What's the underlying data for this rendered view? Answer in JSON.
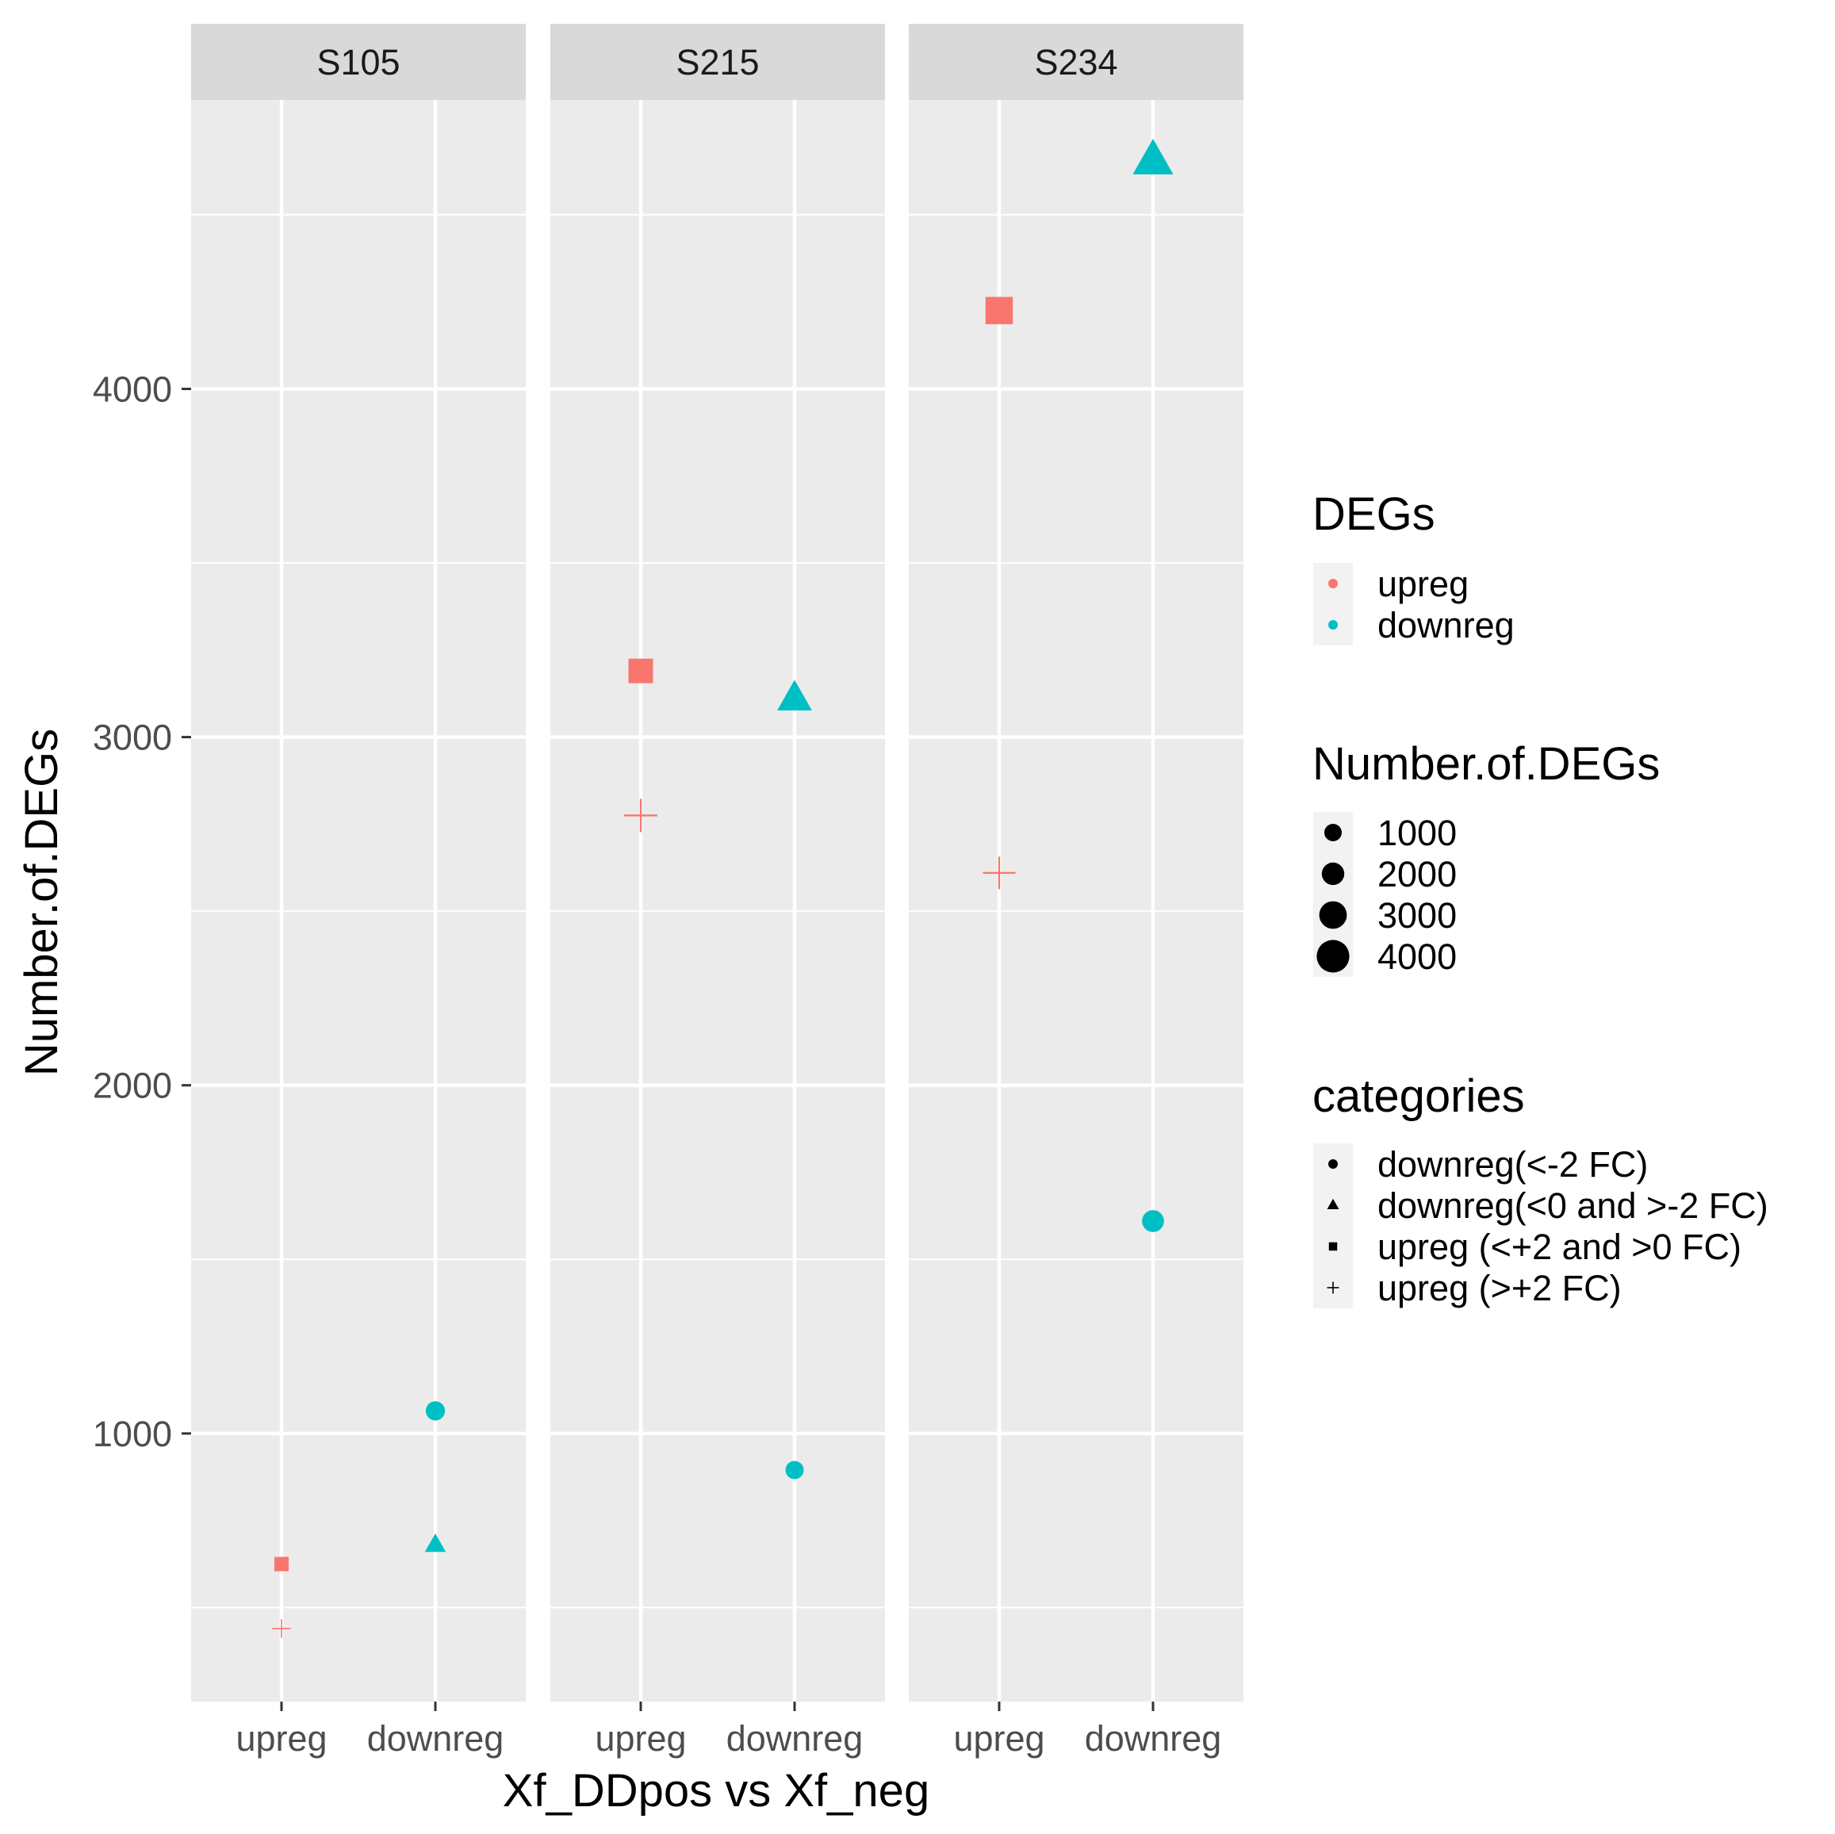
{
  "chart_data": {
    "type": "scatter",
    "facet_variable": "sample",
    "facets": [
      "S105",
      "S215",
      "S234"
    ],
    "categories": [
      "upreg",
      "downreg"
    ],
    "xlabel": "Xf_DDpos vs Xf_neg",
    "ylabel": "Number.of.DEGs",
    "ylim": [
      230,
      4830
    ],
    "yticks": [
      1000,
      2000,
      3000,
      4000
    ],
    "grid": true,
    "colors": {
      "upreg": "#F8766D",
      "downreg": "#00BFC4"
    },
    "points": [
      {
        "facet": "S105",
        "x": "upreg",
        "category": "upreg (>+2 FC)",
        "degs": "upreg",
        "value": 440
      },
      {
        "facet": "S105",
        "x": "upreg",
        "category": "upreg (<+2 and >0 FC)",
        "degs": "upreg",
        "value": 625
      },
      {
        "facet": "S105",
        "x": "downreg",
        "category": "downreg(<0 and >-2 FC)",
        "degs": "downreg",
        "value": 680
      },
      {
        "facet": "S105",
        "x": "downreg",
        "category": "downreg(<-2 FC)",
        "degs": "downreg",
        "value": 1065
      },
      {
        "facet": "S215",
        "x": "upreg",
        "category": "upreg (<+2 and >0 FC)",
        "degs": "upreg",
        "value": 3190
      },
      {
        "facet": "S215",
        "x": "upreg",
        "category": "upreg (>+2 FC)",
        "degs": "upreg",
        "value": 2775
      },
      {
        "facet": "S215",
        "x": "downreg",
        "category": "downreg(<0 and >-2 FC)",
        "degs": "downreg",
        "value": 3110
      },
      {
        "facet": "S215",
        "x": "downreg",
        "category": "downreg(<-2 FC)",
        "degs": "downreg",
        "value": 895
      },
      {
        "facet": "S234",
        "x": "upreg",
        "category": "upreg (<+2 and >0 FC)",
        "degs": "upreg",
        "value": 4225
      },
      {
        "facet": "S234",
        "x": "upreg",
        "category": "upreg (>+2 FC)",
        "degs": "upreg",
        "value": 2610
      },
      {
        "facet": "S234",
        "x": "downreg",
        "category": "downreg(<0 and >-2 FC)",
        "degs": "downreg",
        "value": 4655
      },
      {
        "facet": "S234",
        "x": "downreg",
        "category": "downreg(<-2 FC)",
        "degs": "downreg",
        "value": 1610
      }
    ],
    "legends": {
      "colour": {
        "title": "DEGs",
        "entries": [
          "upreg",
          "downreg"
        ]
      },
      "size": {
        "title": "Number.of.DEGs",
        "entries": [
          1000,
          2000,
          3000,
          4000
        ]
      },
      "shape": {
        "title": "categories",
        "entries": [
          {
            "label": "downreg(<-2 FC)",
            "shape": "circle"
          },
          {
            "label": "downreg(<0 and >-2 FC)",
            "shape": "triangle"
          },
          {
            "label": "upreg (<+2 and >0 FC)",
            "shape": "square"
          },
          {
            "label": "upreg (>+2 FC)",
            "shape": "cross"
          }
        ]
      }
    }
  }
}
